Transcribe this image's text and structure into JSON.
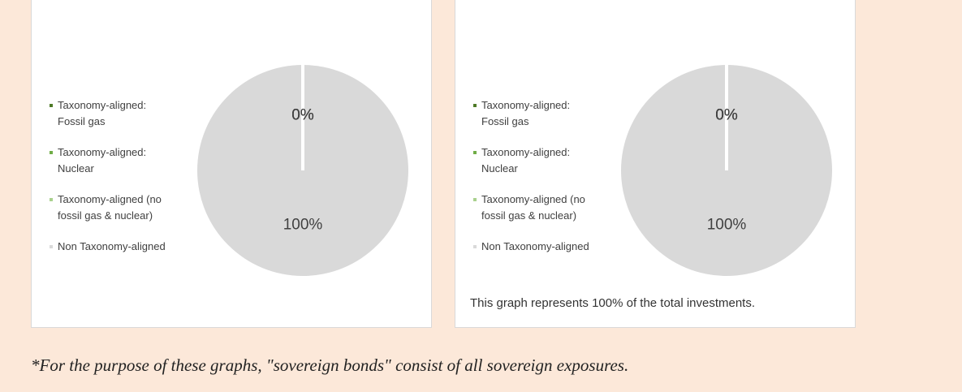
{
  "chart_data": [
    {
      "type": "pie",
      "series": [
        {
          "name": "Taxonomy-aligned: Fossil gas",
          "color": "#4e7a27"
        },
        {
          "name": "Taxonomy-aligned: Nuclear",
          "color": "#70ad47"
        },
        {
          "name": "Taxonomy-aligned (no fossil gas & nuclear)",
          "color": "#a9d18e"
        },
        {
          "name": "Non Taxonomy-aligned",
          "color": "#d9d9d9"
        }
      ],
      "values": [
        0,
        0,
        0,
        100
      ],
      "value_labels": [
        "0%",
        "0%",
        "0%",
        "100%"
      ],
      "legend": "left"
    },
    {
      "type": "pie",
      "series": [
        {
          "name": "Taxonomy-aligned: Fossil gas",
          "color": "#4e7a27"
        },
        {
          "name": "Taxonomy-aligned: Nuclear",
          "color": "#70ad47"
        },
        {
          "name": "Taxonomy-aligned (no fossil gas & nuclear)",
          "color": "#a9d18e"
        },
        {
          "name": "Non Taxonomy-aligned",
          "color": "#d9d9d9"
        }
      ],
      "values": [
        0,
        0,
        0,
        100
      ],
      "value_labels": [
        "0%",
        "0%",
        "0%",
        "100%"
      ],
      "legend": "left",
      "caption": "This graph represents 100% of the total investments."
    }
  ],
  "footnote": "*For the purpose of these graphs, \"sovereign bonds\" consist of all sovereign exposures."
}
